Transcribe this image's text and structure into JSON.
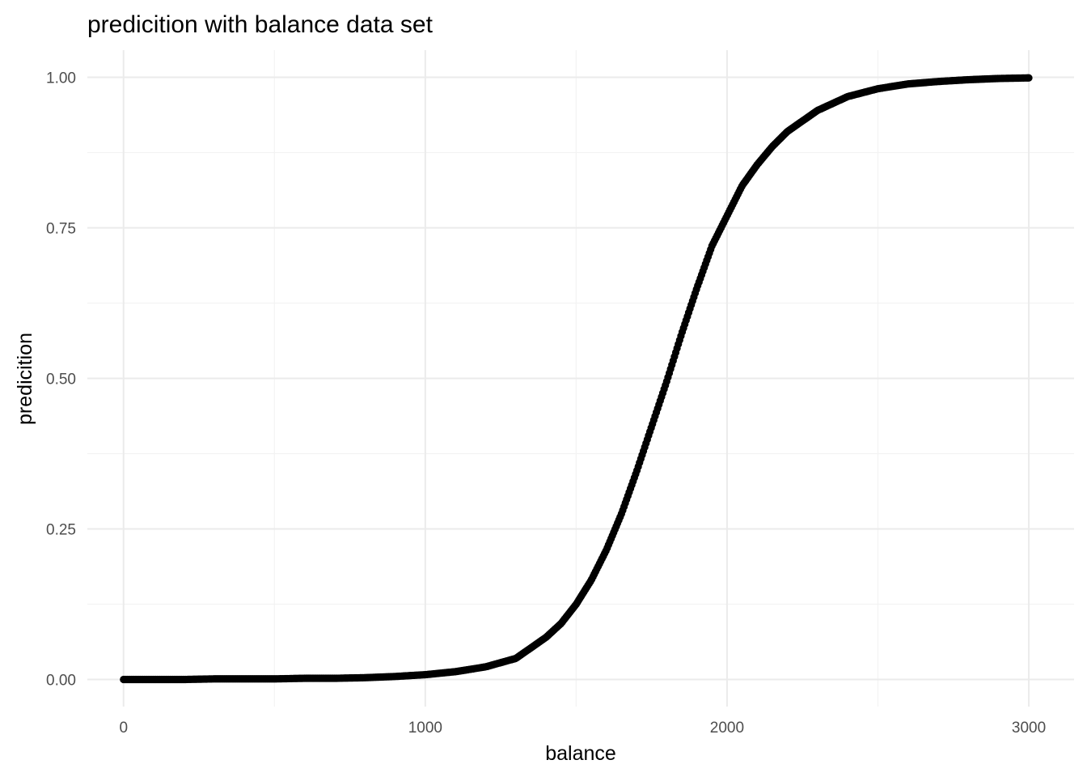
{
  "chart_data": {
    "type": "scatter",
    "title": "predicition with balance data set",
    "xlabel": "balance",
    "ylabel": "predicition",
    "xlim": [
      -120,
      3150
    ],
    "ylim": [
      -0.045,
      1.045
    ],
    "x_ticks": [
      0,
      1000,
      2000,
      3000
    ],
    "x_tick_labels": [
      "0",
      "1000",
      "2000",
      "3000"
    ],
    "y_ticks": [
      0,
      0.25,
      0.5,
      0.75,
      1
    ],
    "y_tick_labels": [
      "0.00",
      "0.25",
      "0.50",
      "0.75",
      "1.00"
    ],
    "x_minor_ticks": [
      500,
      1500,
      2500
    ],
    "y_minor_ticks": [
      0.125,
      0.375,
      0.625,
      0.875
    ],
    "grid": true,
    "theme": "minimal",
    "point_color": "#000000",
    "series": [
      {
        "x": [
          0,
          100,
          200,
          300,
          400,
          500,
          600,
          700,
          800,
          900,
          1000,
          1100,
          1200,
          1300,
          1400,
          1450,
          1500,
          1550,
          1600,
          1650,
          1700,
          1750,
          1800,
          1850,
          1900,
          1950,
          2000,
          2050,
          2100,
          2150,
          2200,
          2300,
          2400,
          2500,
          2600,
          2700,
          2800,
          2900,
          3000
        ],
        "y": [
          0.0,
          0.0,
          0.0,
          0.001,
          0.001,
          0.001,
          0.002,
          0.002,
          0.003,
          0.005,
          0.008,
          0.013,
          0.021,
          0.035,
          0.07,
          0.093,
          0.125,
          0.165,
          0.215,
          0.275,
          0.345,
          0.42,
          0.495,
          0.575,
          0.65,
          0.72,
          0.77,
          0.82,
          0.855,
          0.885,
          0.91,
          0.945,
          0.968,
          0.981,
          0.989,
          0.993,
          0.996,
          0.998,
          0.999
        ]
      }
    ]
  }
}
